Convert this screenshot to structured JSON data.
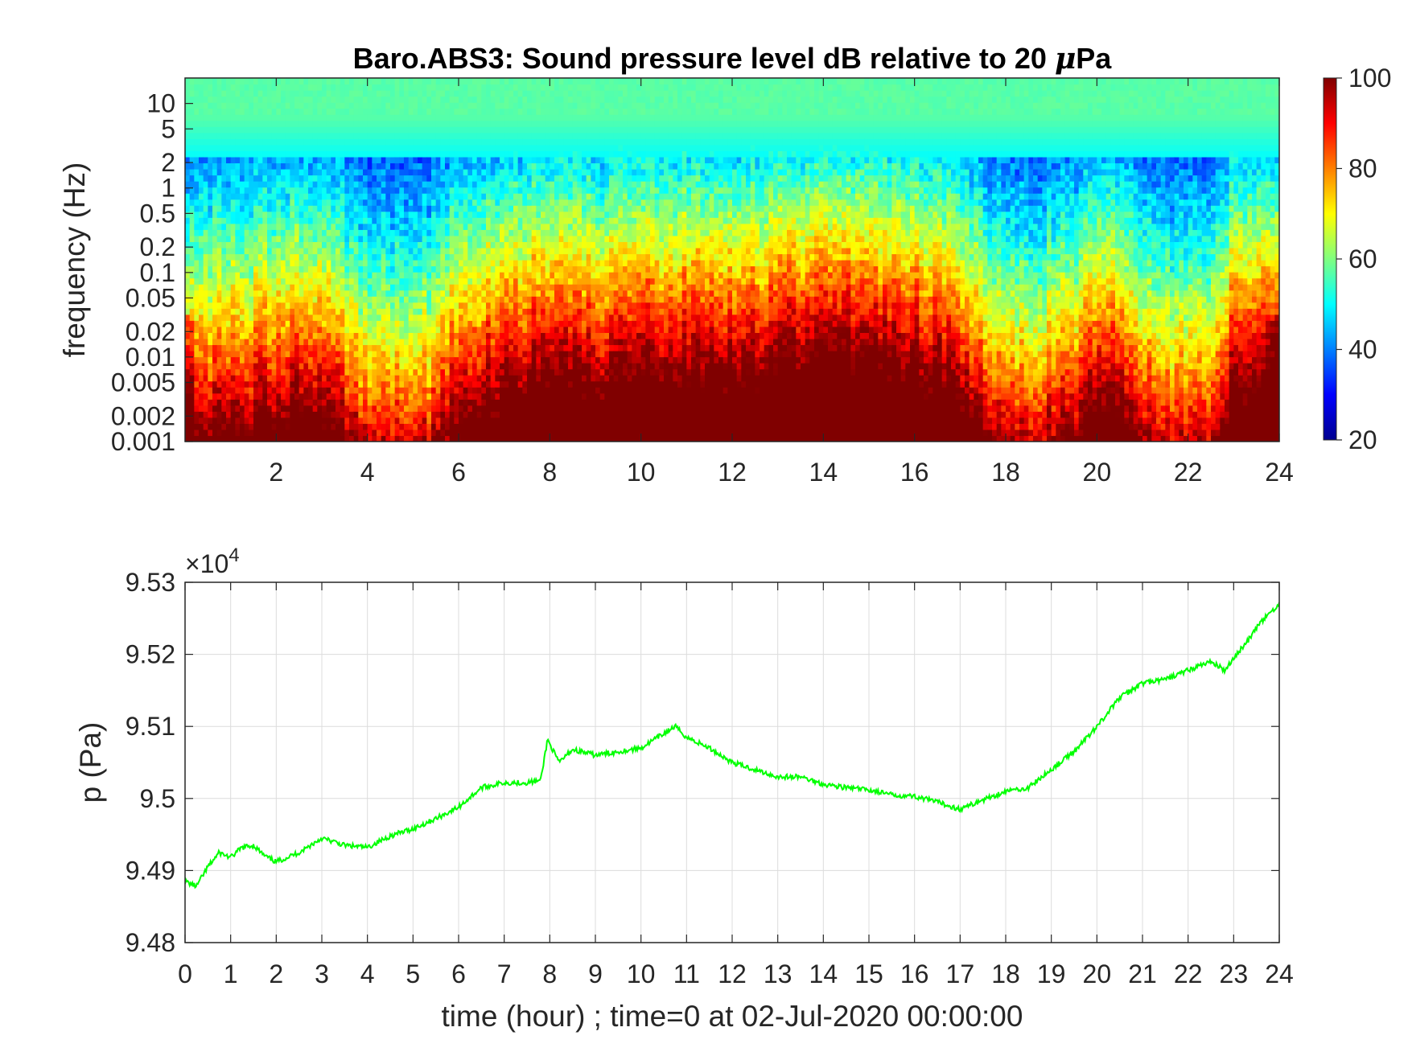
{
  "chart_data": [
    {
      "type": "heatmap",
      "title_prefix": "Baro.ABS3: Sound pressure level dB relative to 20 ",
      "title_mu": "μ",
      "title_suffix": "Pa",
      "ylabel": "frequency (Hz)",
      "xlabel": "",
      "x_range": [
        0,
        24
      ],
      "y_scale": "log",
      "y_range": [
        0.001,
        20
      ],
      "x_ticks": [
        "2",
        "4",
        "6",
        "8",
        "10",
        "12",
        "14",
        "16",
        "18",
        "20",
        "22",
        "24"
      ],
      "x_tick_values": [
        2,
        4,
        6,
        8,
        10,
        12,
        14,
        16,
        18,
        20,
        22,
        24
      ],
      "y_ticks": [
        "0.001",
        "0.002",
        "0.005",
        "0.01",
        "0.02",
        "0.05",
        "0.1",
        "0.2",
        "0.5",
        "1",
        "2",
        "5",
        "10"
      ],
      "y_tick_values": [
        0.001,
        0.002,
        0.005,
        0.01,
        0.02,
        0.05,
        0.1,
        0.2,
        0.5,
        1,
        2,
        5,
        10
      ],
      "colormap": "jet",
      "color_range": [
        20,
        100
      ],
      "colorbar_ticks": [
        "20",
        "40",
        "60",
        "80",
        "100"
      ],
      "colorbar_tick_values": [
        20,
        40,
        60,
        80,
        100
      ],
      "activity_profile": {
        "x_hours": [
          0,
          0.5,
          1,
          1.5,
          2,
          2.5,
          3,
          3.5,
          4,
          4.5,
          5,
          5.5,
          6,
          6.5,
          7,
          7.5,
          8,
          8.5,
          9,
          9.5,
          10,
          10.5,
          11,
          11.5,
          12,
          12.5,
          13,
          13.5,
          14,
          14.5,
          15,
          15.5,
          16,
          16.5,
          17,
          17.5,
          18,
          18.5,
          19,
          19.5,
          20,
          20.5,
          21,
          21.5,
          22,
          22.5,
          23,
          23.5,
          24
        ],
        "level": [
          0.4,
          0.35,
          0.4,
          0.45,
          0.5,
          0.55,
          0.5,
          0.3,
          0.1,
          0.1,
          0.12,
          0.2,
          0.55,
          0.6,
          0.65,
          0.75,
          0.85,
          0.75,
          0.7,
          0.8,
          0.85,
          0.8,
          0.85,
          0.8,
          0.85,
          0.8,
          0.9,
          0.95,
          1.0,
          0.95,
          0.9,
          0.9,
          0.85,
          0.8,
          0.6,
          0.35,
          0.2,
          0.2,
          0.25,
          0.35,
          0.6,
          0.55,
          0.3,
          0.15,
          0.1,
          0.15,
          0.7,
          0.75,
          0.6
        ]
      }
    },
    {
      "type": "line",
      "title": "",
      "xlabel": "time (hour) ; time=0 at 02-Jul-2020 00:00:00",
      "ylabel": "p (Pa)",
      "exponent_base": "×10",
      "exponent_power": "4",
      "xlim": [
        0,
        24
      ],
      "ylim": [
        9.48,
        9.53
      ],
      "x_ticks": [
        "0",
        "1",
        "2",
        "3",
        "4",
        "5",
        "6",
        "7",
        "8",
        "9",
        "10",
        "11",
        "12",
        "13",
        "14",
        "15",
        "16",
        "17",
        "18",
        "19",
        "20",
        "21",
        "22",
        "23",
        "24"
      ],
      "x_tick_values": [
        0,
        1,
        2,
        3,
        4,
        5,
        6,
        7,
        8,
        9,
        10,
        11,
        12,
        13,
        14,
        15,
        16,
        17,
        18,
        19,
        20,
        21,
        22,
        23,
        24
      ],
      "y_ticks": [
        "9.48",
        "9.49",
        "9.5",
        "9.51",
        "9.52",
        "9.53"
      ],
      "y_tick_values": [
        9.48,
        9.49,
        9.5,
        9.51,
        9.52,
        9.53
      ],
      "grid": true,
      "line_color": "#00ff00",
      "series": [
        {
          "x": [
            0,
            0.25,
            0.5,
            0.75,
            1,
            1.25,
            1.5,
            1.75,
            2,
            2.5,
            3,
            3.5,
            4,
            4.5,
            5,
            5.5,
            6,
            6.5,
            7,
            7.5,
            7.8,
            7.95,
            8.2,
            8.5,
            9,
            9.5,
            10,
            10.5,
            10.75,
            11,
            11.5,
            12,
            12.5,
            13,
            13.5,
            14,
            14.5,
            15,
            15.5,
            16,
            16.5,
            17,
            17.5,
            18,
            18.5,
            19,
            19.5,
            20,
            20.5,
            21,
            21.5,
            22,
            22.5,
            22.8,
            23,
            23.3,
            23.6,
            24
          ],
          "y": [
            9.4885,
            9.4878,
            9.4905,
            9.4925,
            9.4918,
            9.4932,
            9.4935,
            9.492,
            9.4912,
            9.4925,
            9.4945,
            9.4935,
            9.4932,
            9.4948,
            9.4958,
            9.4972,
            9.4988,
            9.5015,
            9.5022,
            9.5022,
            9.5025,
            9.5082,
            9.505,
            9.5068,
            9.506,
            9.5065,
            9.507,
            9.509,
            9.51,
            9.5085,
            9.507,
            9.505,
            9.504,
            9.503,
            9.503,
            9.502,
            9.5015,
            9.5012,
            9.5005,
            9.5003,
            9.4995,
            9.4985,
            9.4998,
            9.501,
            9.5015,
            9.504,
            9.5065,
            9.51,
            9.514,
            9.516,
            9.5165,
            9.5178,
            9.519,
            9.5178,
            9.5195,
            9.5218,
            9.5245,
            9.527
          ]
        }
      ]
    }
  ]
}
